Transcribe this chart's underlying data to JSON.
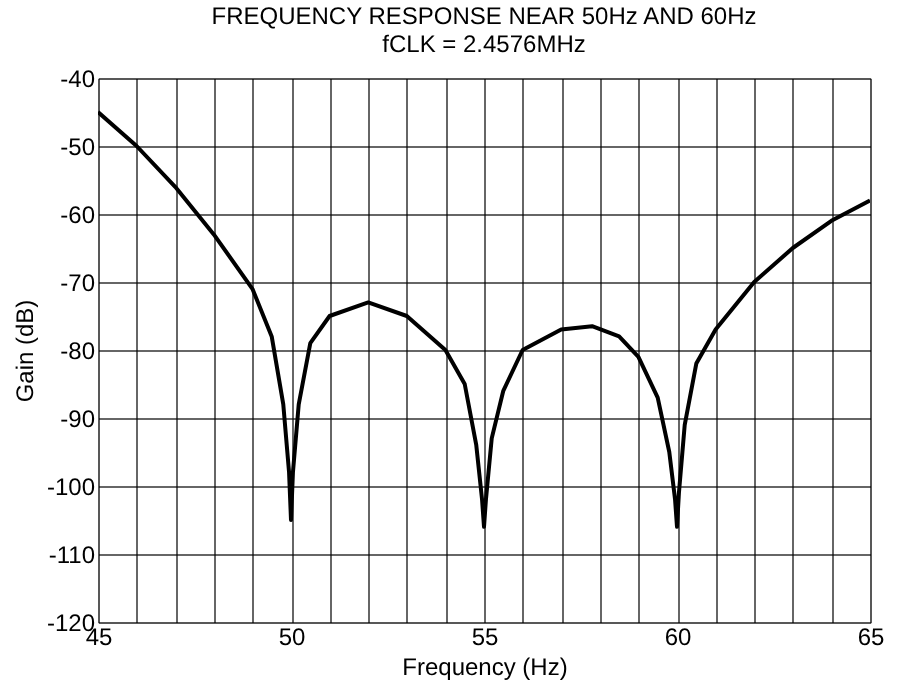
{
  "chart_data": {
    "type": "line",
    "title": "FREQUENCY RESPONSE NEAR 50Hz AND 60Hz",
    "subtitle": "fCLK = 2.4576MHz",
    "xlabel": "Frequency (Hz)",
    "ylabel": "Gain (dB)",
    "series": [
      {
        "color": "#000000",
        "x": [
          45,
          46,
          47,
          48,
          49,
          49.5,
          49.8,
          49.95,
          50,
          50.05,
          50.2,
          50.5,
          51,
          52,
          53,
          54,
          54.5,
          54.8,
          54.95,
          55,
          55.05,
          55.2,
          55.5,
          56,
          57,
          57.8,
          58.5,
          59,
          59.5,
          59.8,
          59.95,
          60,
          60.05,
          60.2,
          60.5,
          61,
          62,
          63,
          64,
          65
        ],
        "values": [
          -45,
          -50,
          -56,
          -63,
          -71,
          -78,
          -88,
          -98,
          -105,
          -98,
          -88,
          -79,
          -75,
          -73,
          -75,
          -80,
          -85,
          -94,
          -102,
          -106,
          -102,
          -93,
          -86,
          -80,
          -77,
          -76.5,
          -78,
          -81,
          -87,
          -95,
          -102,
          -106,
          -101,
          -91,
          -82,
          -77,
          -70,
          -65,
          -61,
          -58
        ]
      }
    ],
    "xlim": [
      45,
      65
    ],
    "ylim": [
      -120,
      -40
    ],
    "xticks": [
      45,
      {
        "value": 46,
        "label": null
      },
      {
        "value": 47,
        "label": null
      },
      {
        "value": 48,
        "label": null
      },
      {
        "value": 49,
        "label": null
      },
      50,
      {
        "value": 51,
        "label": null
      },
      {
        "value": 52,
        "label": null
      },
      {
        "value": 53,
        "label": null
      },
      {
        "value": 54,
        "label": null
      },
      55,
      {
        "value": 56,
        "label": null
      },
      {
        "value": 57,
        "label": null
      },
      {
        "value": 58,
        "label": null
      },
      {
        "value": 59,
        "label": null
      },
      60,
      {
        "value": 61,
        "label": null
      },
      {
        "value": 62,
        "label": null
      },
      {
        "value": 63,
        "label": null
      },
      {
        "value": 64,
        "label": null
      },
      65
    ],
    "yticks": [
      -120,
      -110,
      -100,
      -90,
      -80,
      -70,
      -60,
      -50,
      -40
    ],
    "grid": true,
    "marker": "none",
    "line_style": "solid"
  }
}
